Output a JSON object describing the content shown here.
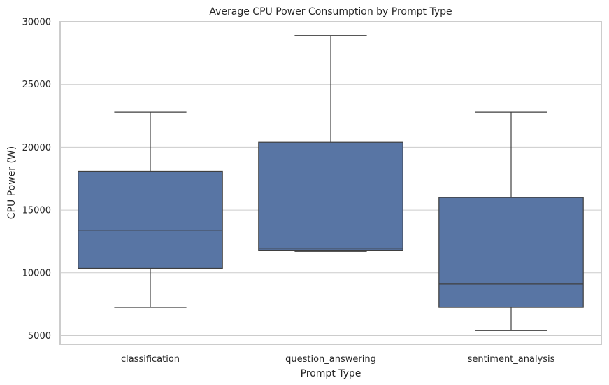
{
  "chart_data": {
    "type": "box",
    "title": "Average CPU Power Consumption by Prompt Type",
    "xlabel": "Prompt Type",
    "ylabel": "CPU Power (W)",
    "categories": [
      "classification",
      "question_answering",
      "sentiment_analysis"
    ],
    "boxes": [
      {
        "category": "classification",
        "whisker_low": 7250,
        "q1": 10350,
        "median": 13400,
        "q3": 18100,
        "whisker_high": 22800
      },
      {
        "category": "question_answering",
        "whisker_low": 11700,
        "q1": 11800,
        "median": 11950,
        "q3": 20400,
        "whisker_high": 28900
      },
      {
        "category": "sentiment_analysis",
        "whisker_low": 5400,
        "q1": 7250,
        "median": 9100,
        "q3": 16000,
        "whisker_high": 22800
      }
    ],
    "yticks": [
      5000,
      10000,
      15000,
      20000,
      25000,
      30000
    ],
    "ylim": [
      4300,
      30000
    ],
    "grid": "horizontal",
    "box_color": "#5875a4",
    "line_color": "#3f3f3f",
    "grid_color": "#cccccc"
  }
}
